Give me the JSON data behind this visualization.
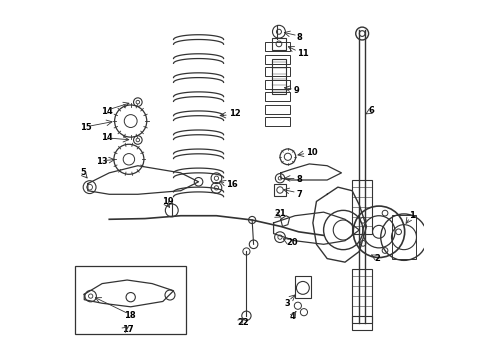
{
  "title": "",
  "background_color": "#ffffff",
  "line_color": "#333333",
  "label_color": "#000000",
  "figsize": [
    4.9,
    3.6
  ],
  "dpi": 100
}
